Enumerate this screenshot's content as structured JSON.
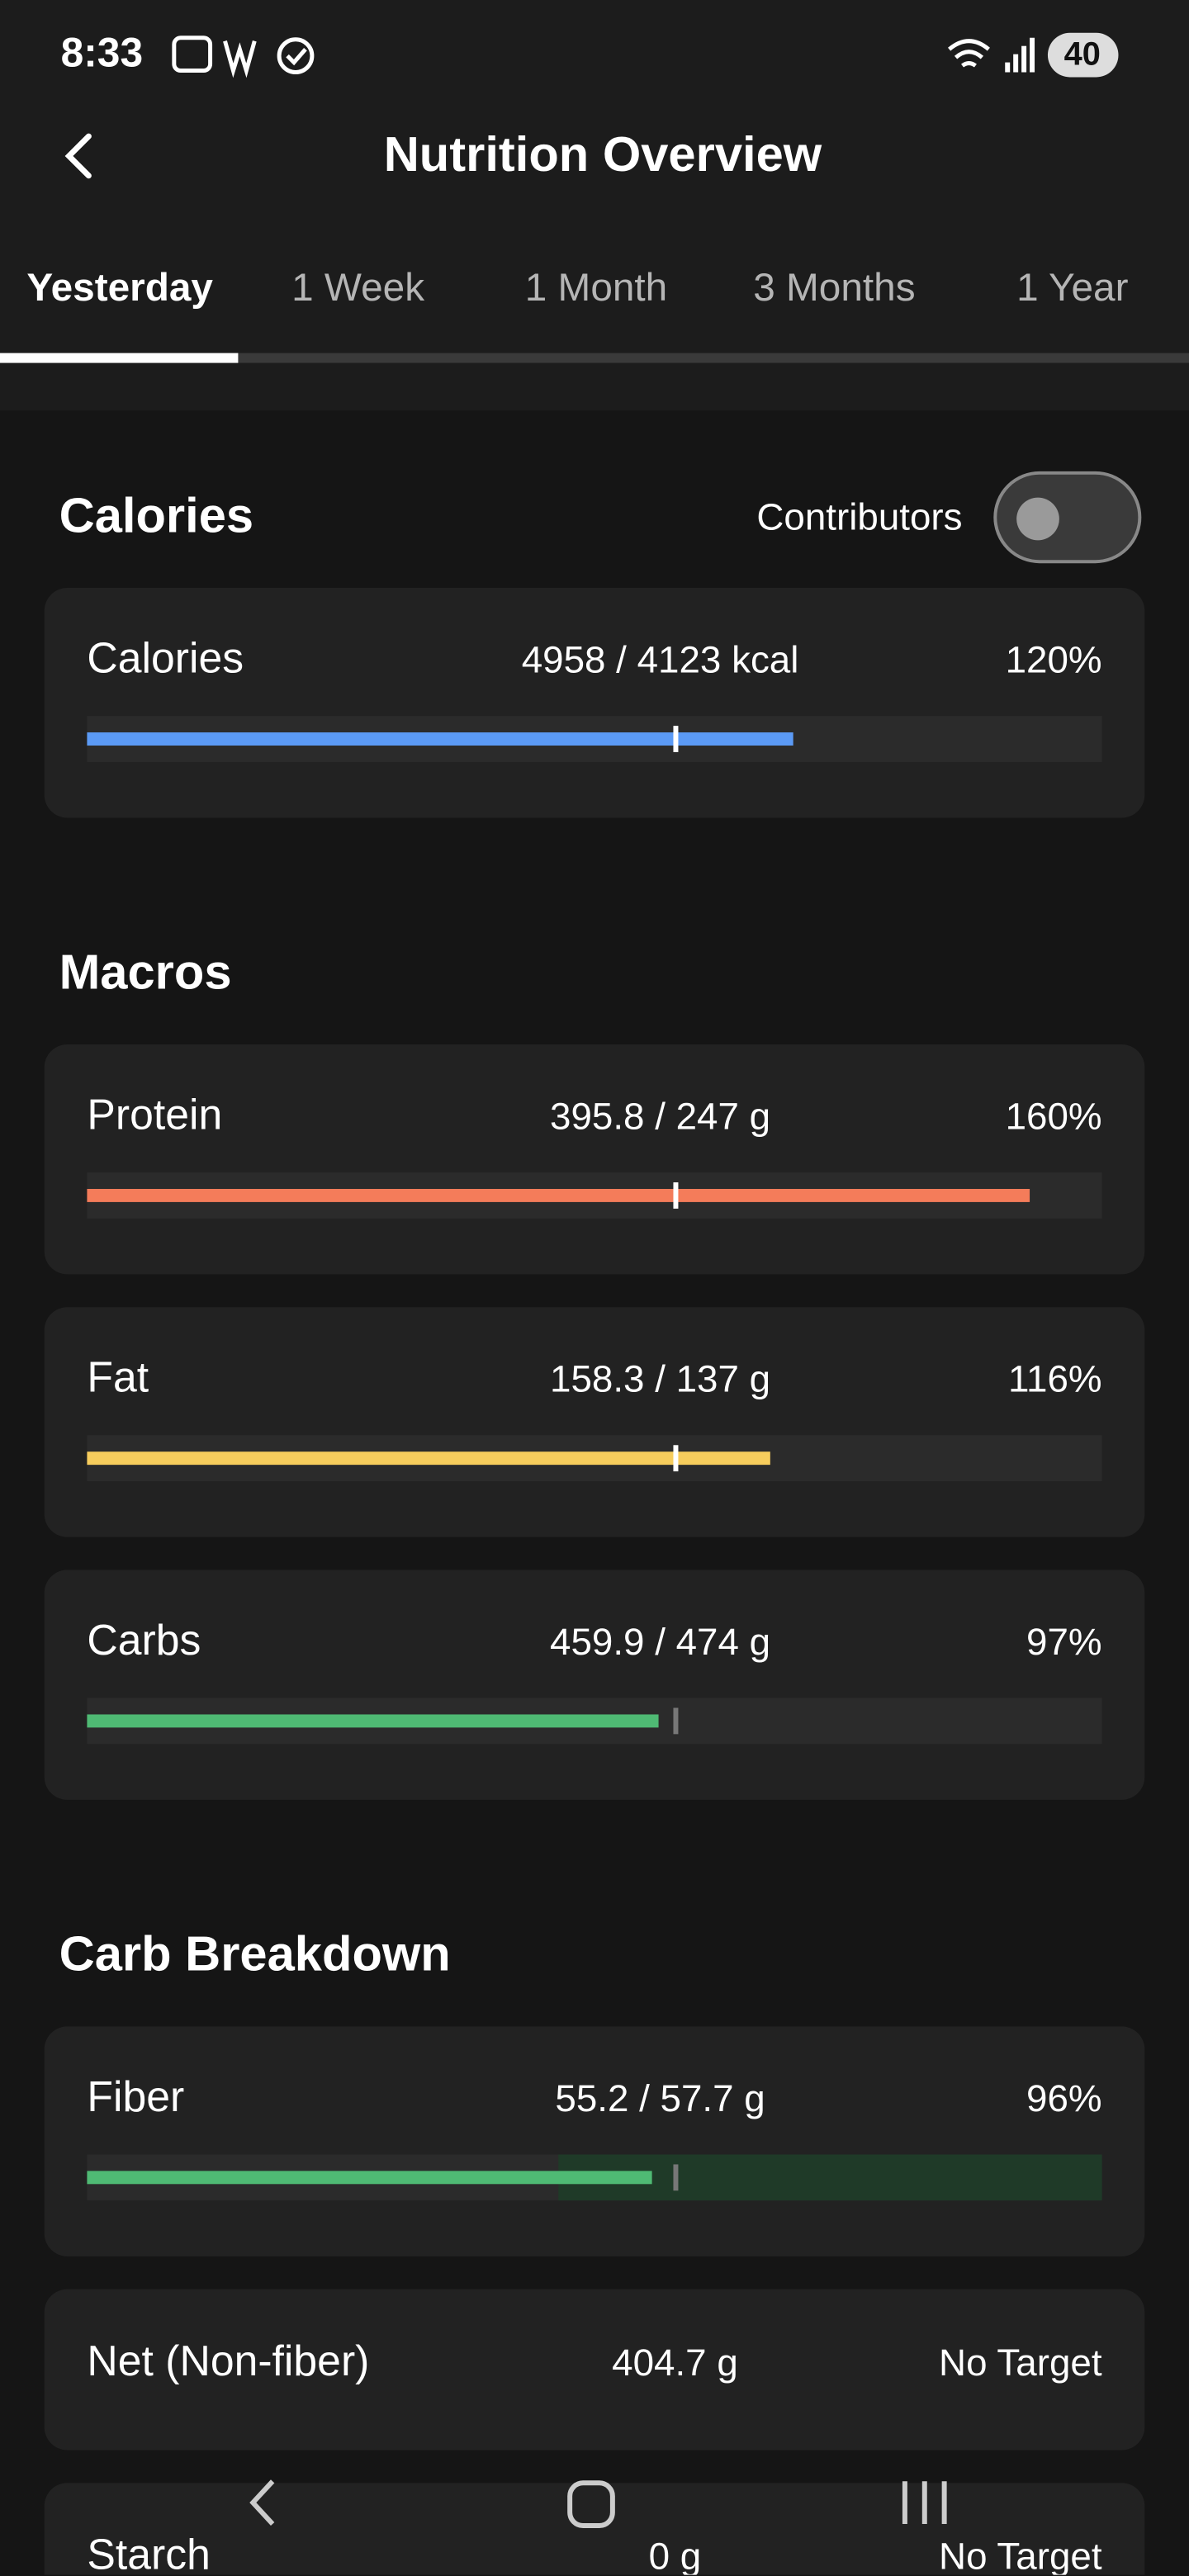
{
  "status_bar": {
    "time": "8:33",
    "battery": "40"
  },
  "header": {
    "title": "Nutrition Overview"
  },
  "tabs": [
    "Yesterday",
    "1 Week",
    "1 Month",
    "3 Months",
    "1 Year"
  ],
  "sections": [
    {
      "title": "Calories",
      "toggle_label": "Contributors",
      "rows": [
        {
          "name": "Calories",
          "amount": "4958 / 4123 kcal",
          "percent": 120,
          "percent_label": "120%",
          "color": "#5b9af5"
        }
      ]
    },
    {
      "title": "Macros",
      "rows": [
        {
          "name": "Protein",
          "amount": "395.8 / 247 g",
          "percent": 160,
          "percent_label": "160%",
          "color": "#f47c5a"
        },
        {
          "name": "Fat",
          "amount": "158.3 / 137 g",
          "percent": 116,
          "percent_label": "116%",
          "color": "#f7cd5d"
        },
        {
          "name": "Carbs",
          "amount": "459.9 / 474 g",
          "percent": 97,
          "percent_label": "97%",
          "color": "#4fba74"
        }
      ]
    },
    {
      "title": "Carb Breakdown",
      "rows": [
        {
          "name": "Fiber",
          "amount": "55.2 / 57.7 g",
          "percent": 96,
          "percent_label": "96%",
          "color": "#4fba74"
        },
        {
          "name": "Net (Non-fiber)",
          "amount": "404.7 g",
          "status": "No Target"
        },
        {
          "name": "Starch",
          "amount": "0 g",
          "status": "No Target"
        }
      ]
    }
  ]
}
